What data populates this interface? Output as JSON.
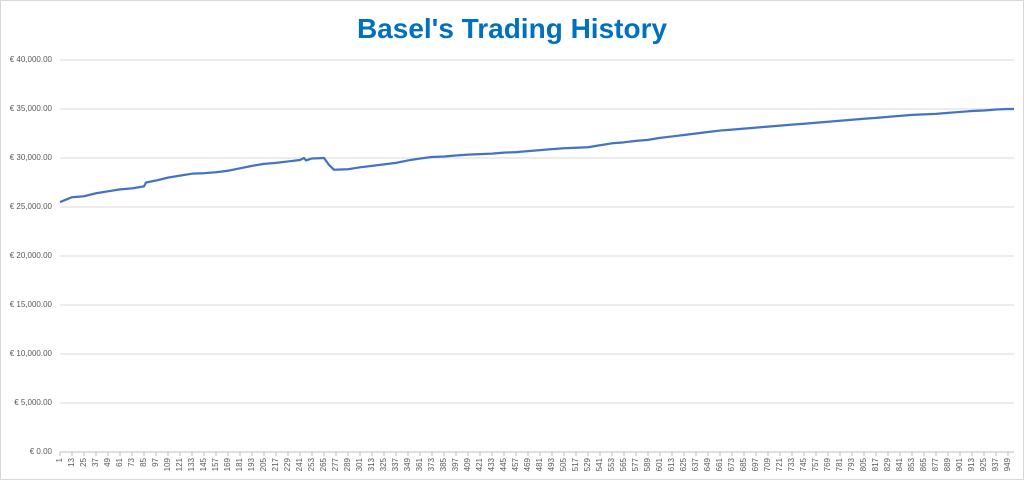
{
  "chart_data": {
    "type": "line",
    "title": "Basel's Trading History",
    "color": "#4472c4",
    "grid": true,
    "x": [
      1,
      13,
      25,
      37,
      49,
      61,
      73,
      85,
      87,
      97,
      109,
      121,
      133,
      145,
      157,
      169,
      181,
      193,
      205,
      217,
      229,
      241,
      245,
      247,
      253,
      265,
      270,
      275,
      289,
      301,
      313,
      325,
      337,
      349,
      361,
      373,
      385,
      397,
      409,
      421,
      433,
      445,
      457,
      469,
      481,
      493,
      505,
      517,
      529,
      541,
      553,
      565,
      577,
      589,
      601,
      613,
      625,
      637,
      649,
      661,
      673,
      685,
      697,
      709,
      721,
      733,
      745,
      757,
      769,
      781,
      793,
      805,
      817,
      829,
      841,
      853,
      865,
      877,
      889,
      901,
      913,
      925,
      937,
      949,
      955
    ],
    "values": [
      25500,
      26000,
      26100,
      26400,
      26600,
      26800,
      26900,
      27100,
      27500,
      27700,
      28000,
      28200,
      28400,
      28450,
      28550,
      28700,
      28950,
      29200,
      29400,
      29500,
      29650,
      29800,
      30000,
      29750,
      29950,
      30000,
      29300,
      28800,
      28850,
      29050,
      29200,
      29350,
      29500,
      29750,
      29950,
      30100,
      30150,
      30250,
      30350,
      30400,
      30450,
      30550,
      30600,
      30700,
      30800,
      30900,
      31000,
      31050,
      31100,
      31300,
      31500,
      31600,
      31750,
      31850,
      32050,
      32200,
      32350,
      32500,
      32650,
      32800,
      32900,
      33000,
      33100,
      33200,
      33300,
      33400,
      33500,
      33600,
      33700,
      33800,
      33900,
      34000,
      34100,
      34200,
      34300,
      34400,
      34450,
      34500,
      34600,
      34700,
      34800,
      34850,
      34950,
      35000,
      35000
    ],
    "xlim": [
      1,
      955
    ],
    "xticks": [
      1,
      13,
      25,
      37,
      49,
      61,
      73,
      85,
      97,
      109,
      121,
      133,
      145,
      157,
      169,
      181,
      193,
      205,
      217,
      229,
      241,
      253,
      265,
      277,
      289,
      301,
      313,
      325,
      337,
      349,
      361,
      373,
      385,
      397,
      409,
      421,
      433,
      445,
      457,
      469,
      481,
      493,
      505,
      517,
      529,
      541,
      553,
      565,
      577,
      589,
      601,
      613,
      625,
      637,
      649,
      661,
      673,
      685,
      697,
      709,
      721,
      733,
      745,
      757,
      769,
      781,
      793,
      805,
      817,
      829,
      841,
      853,
      865,
      877,
      889,
      901,
      913,
      925,
      937,
      949
    ],
    "ylim": [
      0,
      40000
    ],
    "yticks": [
      {
        "value": 0,
        "label": "€ 0.00"
      },
      {
        "value": 5000,
        "label": "€ 5,000.00"
      },
      {
        "value": 10000,
        "label": "€ 10,000.00"
      },
      {
        "value": 15000,
        "label": "€ 15,000.00"
      },
      {
        "value": 20000,
        "label": "€ 20,000.00"
      },
      {
        "value": 25000,
        "label": "€ 25,000.00"
      },
      {
        "value": 30000,
        "label": "€ 30,000.00"
      },
      {
        "value": 35000,
        "label": "€ 35,000.00"
      },
      {
        "value": 40000,
        "label": "€ 40,000.00"
      }
    ]
  }
}
